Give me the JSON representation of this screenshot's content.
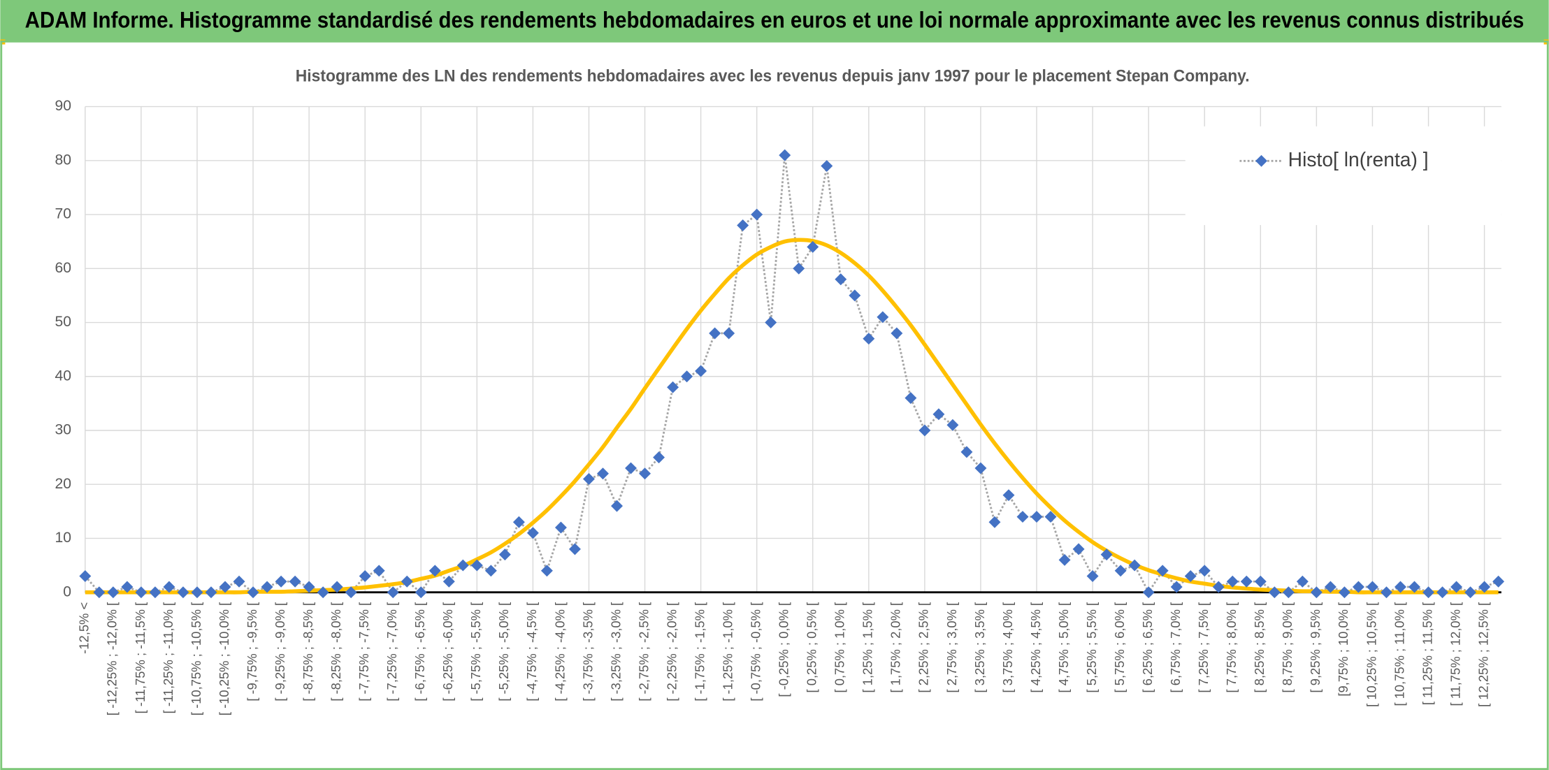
{
  "header": {
    "title": "ADAM Informe. Histogramme standardisé des rendements hebdomadaires en euros et une loi normale approximante avec les revenus connus distribués"
  },
  "chart_data": {
    "type": "line",
    "title": "Histogramme des LN des rendements hebdomadaires avec les revenus depuis janv 1997 pour le placement Stepan Company.",
    "categories": [
      "-12,5% <",
      null,
      "[ -12,25% ; -12,0% [",
      null,
      "[ -11,75% ; -11,5% [",
      null,
      "[ -11,25% ; -11,0% [",
      null,
      "[ -10,75% ; -10,5% [",
      null,
      "[ -10,25% ; -10,0% [",
      null,
      "[ -9,75% ; -9,5% [",
      null,
      "[ -9,25% ; -9,0% [",
      null,
      "[ -8,75% ; -8,5% [",
      null,
      "[ -8,25% ; -8,0% [",
      null,
      "[ -7,75% ; -7,5% [",
      null,
      "[ -7,25% ; -7,0% [",
      null,
      "[ -6,75% ; -6,5% [",
      null,
      "[ -6,25% ; -6,0% [",
      null,
      "[ -5,75% ; -5,5% [",
      null,
      "[ -5,25% ; -5,0% [",
      null,
      "[ -4,75% ; -4,5% [",
      null,
      "[ -4,25% ; -4,0% [",
      null,
      "[ -3,75% ; -3,5% [",
      null,
      "[ -3,25% ; -3,0% [",
      null,
      "[ -2,75% ; -2,5% [",
      null,
      "[ -2,25% ; -2,0% [",
      null,
      "[ -1,75% ; -1,5% [",
      null,
      "[ -1,25% ; -1,0% [",
      null,
      "[ -0,75% ; -0,5% [",
      null,
      "[ -0,25% ; 0,0% [",
      null,
      "[ 0,25% ; 0,5% [",
      null,
      "[ 0,75% ; 1,0% [",
      null,
      "[ 1,25% ; 1,5% [",
      null,
      "[ 1,75% ; 2,0% [",
      null,
      "[ 2,25% ; 2,5% [",
      null,
      "[ 2,75% ; 3,0% [",
      null,
      "[ 3,25% ; 3,5% [",
      null,
      "[ 3,75% ; 4,0% [",
      null,
      "[ 4,25% ; 4,5% [",
      null,
      "[ 4,75% ; 5,0% [",
      null,
      "[ 5,25% ; 5,5% [",
      null,
      "[ 5,75% ; 6,0% [",
      null,
      "[ 6,25% ; 6,5% [",
      null,
      "[ 6,75% ; 7,0% [",
      null,
      "[ 7,25% ; 7,5% [",
      null,
      "[ 7,75% ; 8,0% [",
      null,
      "[ 8,25% ; 8,5% [",
      null,
      "[ 8,75% ; 9,0% [",
      null,
      "[ 9,25% ; 9,5% [",
      null,
      "[9,75% ; 10,0% [",
      null,
      "[ 10,25% ; 10,5% [",
      null,
      "[ 10,75% ; 11,0% [",
      null,
      "[ 11,25% ; 11,5% [",
      null,
      "[ 11,75% ; 12,0% [",
      null,
      "[ 12,25% ; 12,5% [",
      null
    ],
    "series": [
      {
        "name": "Histo[ ln(renta) ]",
        "color": "#4472c4",
        "values": [
          3,
          0,
          0,
          1,
          0,
          0,
          1,
          0,
          0,
          0,
          1,
          2,
          0,
          1,
          2,
          2,
          1,
          0,
          1,
          0,
          3,
          4,
          0,
          2,
          0,
          4,
          2,
          5,
          5,
          4,
          7,
          13,
          11,
          4,
          12,
          8,
          21,
          22,
          16,
          23,
          22,
          25,
          38,
          40,
          41,
          48,
          48,
          68,
          70,
          50,
          81,
          60,
          64,
          79,
          58,
          55,
          47,
          51,
          48,
          36,
          30,
          33,
          31,
          26,
          23,
          13,
          18,
          14,
          14,
          14,
          6,
          8,
          3,
          7,
          4,
          5,
          0,
          4,
          1,
          3,
          4,
          1,
          2,
          2,
          2,
          0,
          0,
          2,
          0,
          1,
          0,
          1,
          1,
          0,
          1,
          1,
          0,
          0,
          1,
          0,
          1,
          2
        ]
      },
      {
        "color": "#ffc000",
        "values": [
          0,
          0,
          0,
          0,
          0,
          0,
          0,
          0,
          0,
          0,
          0,
          0,
          0.1,
          0.1,
          0.1,
          0.2,
          0.3,
          0.4,
          0.5,
          0.7,
          0.9,
          1.2,
          1.5,
          1.9,
          2.5,
          3.1,
          4.0,
          4.9,
          6.1,
          7.4,
          9.0,
          10.8,
          12.9,
          15.2,
          17.8,
          20.6,
          23.7,
          26.9,
          30.5,
          34.0,
          37.8,
          41.5,
          45.2,
          48.8,
          52.2,
          55.3,
          58.2,
          60.6,
          62.6,
          64.0,
          65.0,
          65.3,
          65.1,
          64.3,
          62.9,
          61.0,
          58.7,
          55.9,
          52.8,
          49.5,
          45.9,
          42.2,
          38.5,
          34.8,
          31.1,
          27.6,
          24.3,
          21.2,
          18.3,
          15.7,
          13.3,
          11.2,
          9.3,
          7.7,
          6.3,
          5.1,
          4.1,
          3.3,
          2.6,
          2.0,
          1.6,
          1.2,
          0.9,
          0.7,
          0.5,
          0.4,
          0.3,
          0.2,
          0.2,
          0.1,
          0.1,
          0,
          0,
          0,
          0,
          0,
          0,
          0,
          0,
          0,
          0,
          0
        ]
      }
    ],
    "ylim": [
      0,
      90
    ],
    "yticks": [
      0,
      10,
      20,
      30,
      40,
      50,
      60,
      70,
      80,
      90
    ],
    "grid": true,
    "legend": "upper right"
  }
}
